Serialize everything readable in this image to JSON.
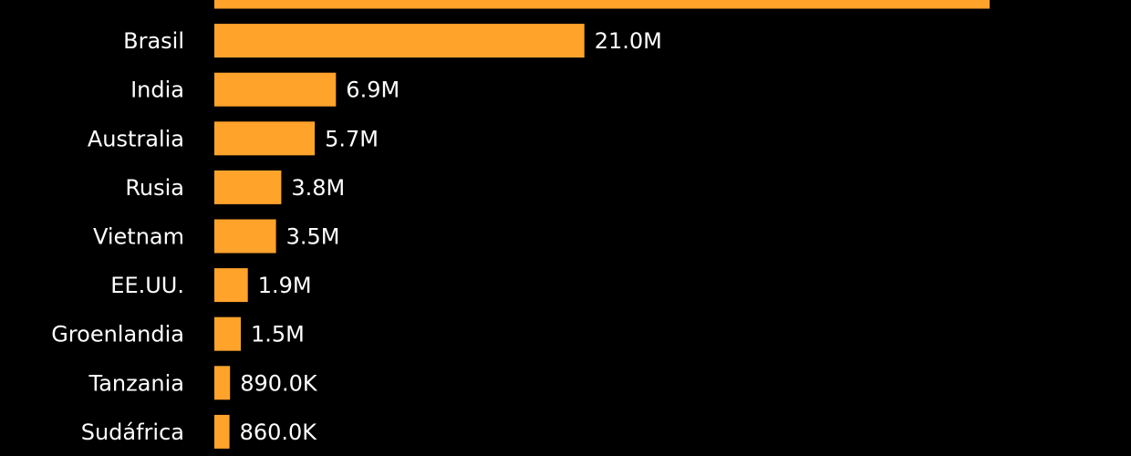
{
  "chart_data": {
    "type": "bar",
    "orientation": "horizontal",
    "categories": [
      "",
      "Brasil",
      "India",
      "Australia",
      "Rusia",
      "Vietnam",
      "EE.UU.",
      "Groenlandia",
      "Tanzania",
      "Sudáfrica"
    ],
    "values": [
      44000000,
      21000000,
      6900000,
      5700000,
      3800000,
      3500000,
      1900000,
      1500000,
      890000,
      860000
    ],
    "value_labels": [
      "",
      "21.0M",
      "6.9M",
      "5.7M",
      "3.8M",
      "3.5M",
      "1.9M",
      "1.5M",
      "890.0K",
      "860.0K"
    ],
    "bar_color": "#ffa32b",
    "background_color": "#000000",
    "text_color": "#ffffff",
    "xlim": [
      0,
      44000000
    ],
    "grid": false,
    "legend": "none",
    "title": "",
    "xlabel": "",
    "ylabel": ""
  }
}
